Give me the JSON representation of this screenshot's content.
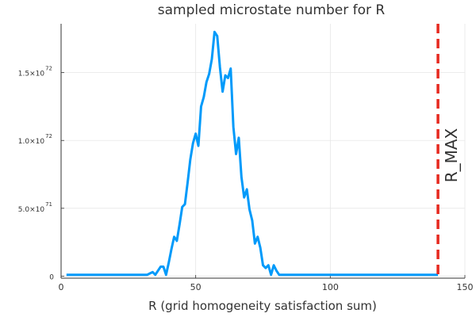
{
  "chart_data": {
    "type": "line",
    "title": "sampled microstate number for R",
    "xlabel": "R (grid homogeneity satisfaction sum)",
    "ylabel": "",
    "xlim": [
      0,
      150
    ],
    "ylim": [
      -1.5e+70,
      1.86e+72
    ],
    "grid": true,
    "legend": "none",
    "x_ticks": [
      {
        "value": 0,
        "label": "0"
      },
      {
        "value": 50,
        "label": "50"
      },
      {
        "value": 100,
        "label": "100"
      },
      {
        "value": 150,
        "label": "150"
      }
    ],
    "y_ticks": [
      {
        "value": 0,
        "mantissa": "0",
        "exponent": ""
      },
      {
        "value": 5e+71,
        "mantissa": "5.0×10",
        "exponent": "71"
      },
      {
        "value": 1e+72,
        "mantissa": "1.0×10",
        "exponent": "72"
      },
      {
        "value": 1.5e+72,
        "mantissa": "1.5×10",
        "exponent": "72"
      }
    ],
    "series": [
      {
        "color": "#009AFA",
        "x": [
          2,
          32,
          33,
          34,
          35,
          36,
          37,
          38,
          39,
          40,
          41,
          42,
          43,
          44,
          45,
          46,
          47,
          48,
          49,
          50,
          51,
          52,
          53,
          54,
          55,
          56,
          57,
          58,
          59,
          60,
          61,
          62,
          63,
          64,
          65,
          66,
          67,
          68,
          69,
          70,
          71,
          72,
          73,
          74,
          75,
          76,
          77,
          78,
          79,
          80,
          81,
          140
        ],
        "y": [
          1e+70,
          1e+70,
          2e+70,
          3e+70,
          1e+70,
          4e+70,
          7e+70,
          7e+70,
          1e+70,
          1e+71,
          2e+71,
          2.9e+71,
          2.6e+71,
          3.8e+71,
          5.1e+71,
          5.3e+71,
          6.9e+71,
          8.6e+71,
          9.8e+71,
          1.05e+72,
          9.6e+71,
          1.25e+72,
          1.32e+72,
          1.43e+72,
          1.49e+72,
          1.6e+72,
          1.8e+72,
          1.77e+72,
          1.54e+72,
          1.36e+72,
          1.48e+72,
          1.46e+72,
          1.53e+72,
          1.1e+72,
          9e+71,
          1.02e+72,
          7.3e+71,
          5.8e+71,
          6.4e+71,
          4.9e+71,
          4.1e+71,
          2.4e+71,
          2.9e+71,
          2.1e+71,
          8e+70,
          6e+70,
          8e+70,
          1e+70,
          8e+70,
          4e+70,
          1e+70,
          1e+70
        ]
      }
    ],
    "annotations": [
      {
        "type": "vline",
        "x": 140,
        "color": "#E6281E",
        "style": "dashed",
        "label": "R_MAX"
      }
    ]
  }
}
